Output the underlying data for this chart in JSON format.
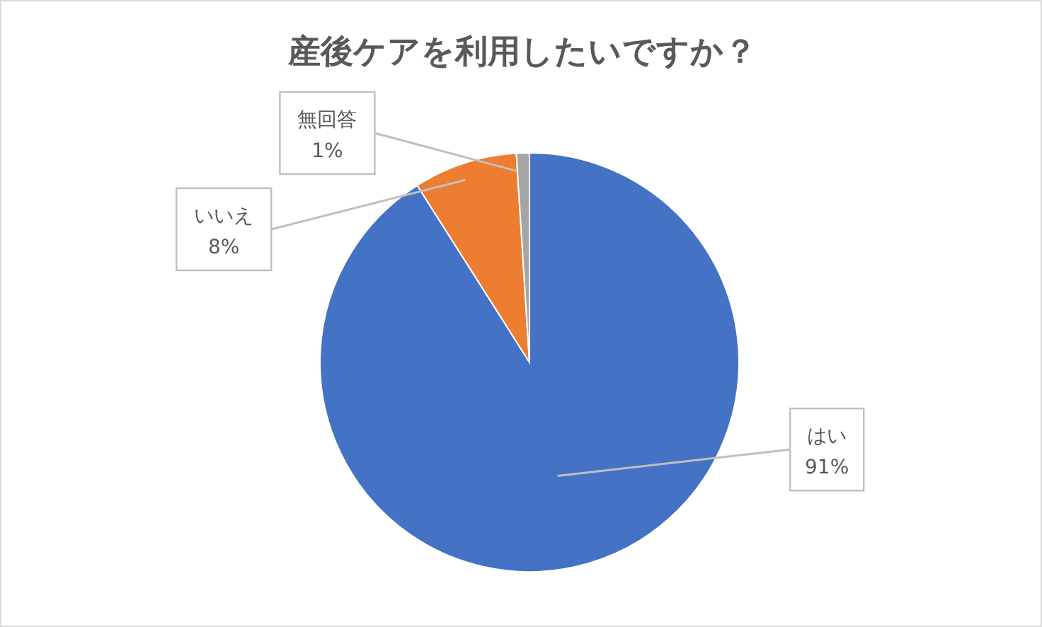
{
  "chart_data": {
    "type": "pie",
    "title": "産後ケアを利用したいですか？",
    "categories": [
      "はい",
      "いいえ",
      "無回答"
    ],
    "values": [
      91,
      8,
      1
    ],
    "colors": [
      "#4472c4",
      "#ed7d31",
      "#a5a5a5"
    ],
    "value_labels": [
      "91%",
      "8%",
      "1%"
    ]
  }
}
